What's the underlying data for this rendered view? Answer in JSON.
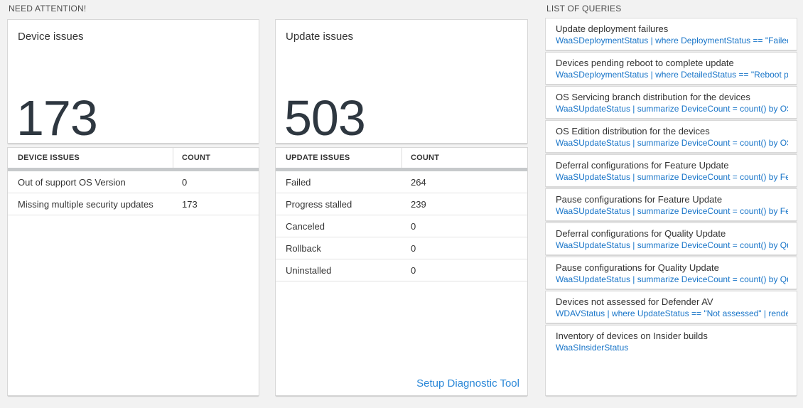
{
  "page": {
    "background_color": "#f2f2f2",
    "query_blue": "#1774c8",
    "link_blue": "#2b88d8",
    "number_color": "#2e3740"
  },
  "need_attention": {
    "section_title": "NEED ATTENTION!",
    "cards": [
      {
        "title": "Device issues",
        "big_number": "173",
        "table": {
          "columns": [
            "DEVICE ISSUES",
            "COUNT"
          ],
          "rows": [
            {
              "label": "Out of support OS Version",
              "count": "0"
            },
            {
              "label": "Missing multiple security updates",
              "count": "173"
            }
          ]
        }
      },
      {
        "title": "Update issues",
        "big_number": "503",
        "table": {
          "columns": [
            "UPDATE ISSUES",
            "COUNT"
          ],
          "rows": [
            {
              "label": "Failed",
              "count": "264"
            },
            {
              "label": "Progress stalled",
              "count": "239"
            },
            {
              "label": "Canceled",
              "count": "0"
            },
            {
              "label": "Rollback",
              "count": "0"
            },
            {
              "label": "Uninstalled",
              "count": "0"
            }
          ]
        },
        "footer_link": "Setup Diagnostic Tool"
      }
    ]
  },
  "list_of_queries": {
    "section_title": "LIST OF QUERIES",
    "queries": [
      {
        "title": "Update deployment failures",
        "query": "WaaSDeploymentStatus | where DeploymentStatus == \"Failed\" |..."
      },
      {
        "title": "Devices pending reboot to complete update",
        "query": "WaaSDeploymentStatus | where DetailedStatus == \"Reboot pend..."
      },
      {
        "title": "OS Servicing branch distribution for the devices",
        "query": "WaaSUpdateStatus | summarize DeviceCount = count() by OSSer..."
      },
      {
        "title": "OS Edition distribution for the devices",
        "query": "WaaSUpdateStatus | summarize DeviceCount = count() by OSEdit..."
      },
      {
        "title": "Deferral configurations for Feature Update",
        "query": "WaaSUpdateStatus | summarize DeviceCount = count() by Featur..."
      },
      {
        "title": "Pause configurations for Feature Update",
        "query": "WaaSUpdateStatus | summarize DeviceCount = count() by Featur..."
      },
      {
        "title": "Deferral configurations for Quality Update",
        "query": "WaaSUpdateStatus | summarize DeviceCount = count() by Qualit..."
      },
      {
        "title": "Pause configurations for Quality Update",
        "query": "WaaSUpdateStatus | summarize DeviceCount = count() by Qualit..."
      },
      {
        "title": "Devices not assessed for Defender AV",
        "query": "WDAVStatus | where UpdateStatus == \"Not assessed\" | render ta..."
      },
      {
        "title": "Inventory of devices on Insider builds",
        "query": "WaaSInsiderStatus"
      }
    ]
  }
}
